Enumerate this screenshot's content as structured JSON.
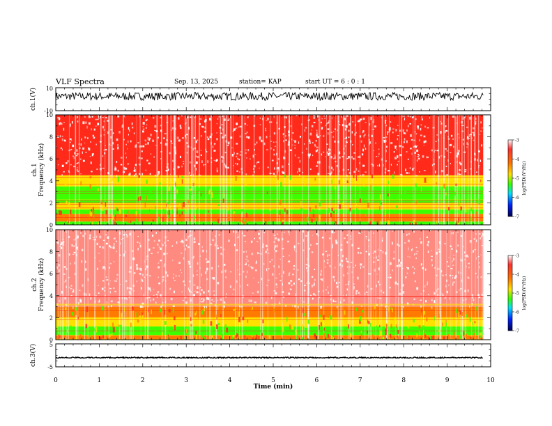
{
  "header": {
    "title": "VLF Spectra",
    "date": "Sep. 13, 2025",
    "station": "station= KAP",
    "start_ut": "start  UT =   6 : 0  : 1"
  },
  "chart_data": [
    {
      "type": "line",
      "panel": "waveform-ch1",
      "ylabel": "ch.1(V)",
      "ylim": [
        -10,
        10
      ],
      "yticks": [
        "10",
        "-10"
      ],
      "xlim": [
        0,
        10
      ],
      "data_extent_min": 9.83,
      "approx_level_range": [
        -1,
        6
      ],
      "color": "#000000"
    },
    {
      "type": "heatmap",
      "panel": "spectrogram-ch1",
      "ylabel": "ch.1\nFrequency  (kHz)",
      "ylim": [
        0,
        10
      ],
      "yticks": [
        "0",
        "2",
        "4",
        "6",
        "8",
        "10"
      ],
      "xlim": [
        0,
        10
      ],
      "data_extent_min": 9.83,
      "bands": [
        {
          "from_khz": 0.0,
          "to_khz": 0.3,
          "level": "green"
        },
        {
          "from_khz": 0.3,
          "to_khz": 1.0,
          "level": "orange"
        },
        {
          "from_khz": 1.0,
          "to_khz": 1.4,
          "level": "green"
        },
        {
          "from_khz": 1.4,
          "to_khz": 2.0,
          "level": "yellow"
        },
        {
          "from_khz": 2.0,
          "to_khz": 3.5,
          "level": "green"
        },
        {
          "from_khz": 3.5,
          "to_khz": 4.5,
          "level": "yellow"
        },
        {
          "from_khz": 4.5,
          "to_khz": 10.0,
          "level": "red"
        }
      ],
      "colorbar": {
        "label": "log(PSD)(V²/Hz)",
        "ticks": [
          "-3",
          "-4",
          "-5",
          "-6",
          "-7"
        ],
        "range": [
          -7,
          -3
        ]
      }
    },
    {
      "type": "heatmap",
      "panel": "spectrogram-ch2",
      "ylabel": "ch.2\nFrequency  (kHz)",
      "ylim": [
        0,
        10
      ],
      "yticks": [
        "0",
        "2",
        "4",
        "6",
        "8",
        "10"
      ],
      "xlim": [
        0,
        10
      ],
      "data_extent_min": 9.83,
      "bands": [
        {
          "from_khz": 0.0,
          "to_khz": 0.4,
          "level": "orange"
        },
        {
          "from_khz": 0.4,
          "to_khz": 1.2,
          "level": "green"
        },
        {
          "from_khz": 1.2,
          "to_khz": 2.0,
          "level": "yellow"
        },
        {
          "from_khz": 2.0,
          "to_khz": 3.0,
          "level": "orange"
        },
        {
          "from_khz": 3.0,
          "to_khz": 10.0,
          "level": "light-red"
        }
      ],
      "colorbar": {
        "label": "log(PSD)(V²/Hz)",
        "ticks": [
          "-3",
          "-4",
          "-5",
          "-6",
          "-7"
        ],
        "range": [
          -7,
          -3
        ]
      }
    },
    {
      "type": "line",
      "panel": "waveform-ch3",
      "ylabel": "ch.3(V)",
      "ylim": [
        -5,
        5
      ],
      "yticks": [
        "5",
        "-5"
      ],
      "xlim": [
        0,
        10
      ],
      "xticks": [
        "0",
        "1",
        "2",
        "3",
        "4",
        "5",
        "6",
        "7",
        "8",
        "9",
        "10"
      ],
      "xlabel": "Time  (min)",
      "data_extent_min": 9.83,
      "approx_level_range": [
        -1.5,
        -0.5
      ],
      "color": "#000000"
    }
  ],
  "colors": {
    "red": "#ff2a1a",
    "light-red": "#ff8a80",
    "orange": "#ff7a00",
    "yellow": "#ffe100",
    "green": "#3cff00",
    "cyan": "#00e5ff",
    "blue": "#0020ff",
    "navy": "#000060"
  }
}
